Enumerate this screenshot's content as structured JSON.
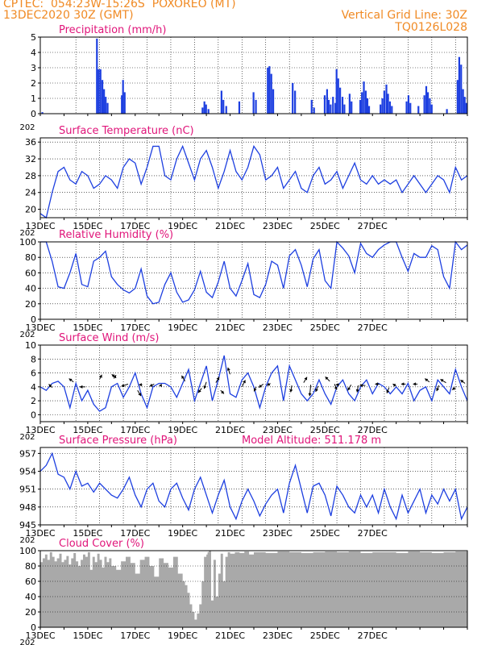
{
  "header": {
    "line1": "CPTEC:  054:23W-15:26S  POXOREO (MT)",
    "line2": "13DEC2020 30Z (GMT)",
    "right1": "Vertical Grid Line: 30Z",
    "right2": "TQ0126L028"
  },
  "colors": {
    "header": "#f08a24",
    "title": "#e0157a",
    "line": "#1d3fe0",
    "bar": "#1d3fe0",
    "cloud": "#a9a9a9",
    "axis": "#000000"
  },
  "x_ticks": [
    "13DEC",
    "15DEC",
    "17DEC",
    "19DEC",
    "21DEC",
    "23DEC",
    "25DEC",
    "27DEC"
  ],
  "year_stub": "202",
  "chart_data": [
    {
      "id": "precip",
      "type": "bar",
      "title": "Precipitation (mm/h)",
      "ylim": [
        0,
        5
      ],
      "yticks": [
        0,
        1,
        2,
        3,
        4,
        5
      ],
      "grid": true,
      "x_unit": "days since 13DEC 00Z",
      "show_xlabels": false,
      "bars": [
        [
          0.05,
          0.1
        ],
        [
          2.35,
          4.9
        ],
        [
          2.42,
          2.9
        ],
        [
          2.5,
          2.9
        ],
        [
          2.58,
          2.2
        ],
        [
          2.65,
          1.6
        ],
        [
          2.72,
          1.1
        ],
        [
          2.8,
          0.7
        ],
        [
          3.4,
          1.2
        ],
        [
          3.45,
          2.2
        ],
        [
          3.52,
          1.4
        ],
        [
          6.8,
          0.4
        ],
        [
          6.88,
          0.8
        ],
        [
          6.95,
          0.6
        ],
        [
          7.05,
          0.3
        ],
        [
          7.6,
          1.5
        ],
        [
          7.68,
          0.9
        ],
        [
          7.8,
          0.5
        ],
        [
          8.35,
          0.8
        ],
        [
          8.95,
          1.4
        ],
        [
          9.05,
          0.9
        ],
        [
          9.55,
          3.0
        ],
        [
          9.62,
          3.1
        ],
        [
          9.7,
          2.6
        ],
        [
          9.78,
          1.6
        ],
        [
          10.6,
          2.0
        ],
        [
          10.7,
          1.5
        ],
        [
          11.4,
          0.9
        ],
        [
          11.5,
          0.4
        ],
        [
          11.95,
          1.2
        ],
        [
          12.05,
          1.6
        ],
        [
          12.12,
          0.9
        ],
        [
          12.2,
          0.6
        ],
        [
          12.3,
          1.1
        ],
        [
          12.4,
          0.7
        ],
        [
          12.45,
          2.9
        ],
        [
          12.52,
          2.3
        ],
        [
          12.6,
          1.7
        ],
        [
          12.7,
          1.1
        ],
        [
          12.78,
          0.6
        ],
        [
          13.0,
          1.3
        ],
        [
          13.08,
          0.8
        ],
        [
          13.45,
          0.9
        ],
        [
          13.52,
          1.4
        ],
        [
          13.6,
          2.1
        ],
        [
          13.68,
          1.5
        ],
        [
          13.75,
          1.0
        ],
        [
          13.82,
          0.5
        ],
        [
          14.3,
          0.6
        ],
        [
          14.38,
          1.0
        ],
        [
          14.46,
          1.5
        ],
        [
          14.55,
          1.9
        ],
        [
          14.62,
          1.3
        ],
        [
          14.7,
          0.8
        ],
        [
          14.78,
          0.5
        ],
        [
          15.4,
          0.8
        ],
        [
          15.48,
          1.2
        ],
        [
          15.56,
          0.7
        ],
        [
          15.9,
          0.5
        ],
        [
          16.15,
          1.2
        ],
        [
          16.23,
          1.8
        ],
        [
          16.3,
          1.4
        ],
        [
          16.38,
          1.0
        ],
        [
          16.46,
          0.6
        ],
        [
          17.1,
          0.3
        ],
        [
          17.55,
          2.2
        ],
        [
          17.62,
          3.7
        ],
        [
          17.7,
          3.2
        ],
        [
          17.78,
          1.6
        ],
        [
          17.85,
          1.1
        ],
        [
          17.92,
          0.7
        ]
      ]
    },
    {
      "id": "temp",
      "type": "line",
      "title": "Surface Temperature (nC)",
      "ylim": [
        18,
        37
      ],
      "yticks": [
        20,
        24,
        28,
        32,
        36
      ],
      "grid": true,
      "x_unit": "days since 13DEC 00Z",
      "show_xlabels": true,
      "x": [
        0,
        0.25,
        0.5,
        0.75,
        1,
        1.25,
        1.5,
        1.75,
        2,
        2.25,
        2.5,
        2.75,
        3,
        3.25,
        3.5,
        3.75,
        4,
        4.25,
        4.5,
        4.75,
        5,
        5.25,
        5.5,
        5.75,
        6,
        6.25,
        6.5,
        6.75,
        7,
        7.25,
        7.5,
        7.75,
        8,
        8.25,
        8.5,
        8.75,
        9,
        9.25,
        9.5,
        9.75,
        10,
        10.25,
        10.5,
        10.75,
        11,
        11.25,
        11.5,
        11.75,
        12,
        12.25,
        12.5,
        12.75,
        13,
        13.25,
        13.5,
        13.75,
        14,
        14.25,
        14.5,
        14.75,
        15,
        15.25,
        15.5,
        15.75,
        16,
        16.25,
        16.5,
        16.75,
        17,
        17.25,
        17.5,
        17.75,
        18
      ],
      "y": [
        19,
        18,
        24,
        29,
        30,
        27,
        26,
        29,
        28,
        25,
        26,
        28,
        27,
        25,
        30,
        32,
        31,
        26,
        30,
        35,
        35,
        28,
        27,
        32,
        35,
        31,
        27,
        32,
        34,
        30,
        25,
        29,
        34,
        29,
        27,
        30,
        35,
        33,
        27,
        28,
        30,
        25,
        27,
        29,
        25,
        24,
        28,
        30,
        26,
        27,
        29,
        25,
        28,
        31,
        27,
        26,
        28,
        26,
        27,
        26,
        27,
        24,
        26,
        28,
        26,
        24,
        26,
        28,
        27,
        24,
        30,
        27,
        28
      ]
    },
    {
      "id": "rh",
      "type": "line",
      "title": "Relative Humidity (%)",
      "ylim": [
        0,
        100
      ],
      "yticks": [
        0,
        20,
        40,
        60,
        80,
        100
      ],
      "grid": true,
      "x_unit": "days since 13DEC 00Z",
      "show_xlabels": true,
      "x": [
        0,
        0.25,
        0.5,
        0.75,
        1,
        1.25,
        1.5,
        1.75,
        2,
        2.25,
        2.5,
        2.75,
        3,
        3.25,
        3.5,
        3.75,
        4,
        4.25,
        4.5,
        4.75,
        5,
        5.25,
        5.5,
        5.75,
        6,
        6.25,
        6.5,
        6.75,
        7,
        7.25,
        7.5,
        7.75,
        8,
        8.25,
        8.5,
        8.75,
        9,
        9.25,
        9.5,
        9.75,
        10,
        10.25,
        10.5,
        10.75,
        11,
        11.25,
        11.5,
        11.75,
        12,
        12.25,
        12.5,
        12.75,
        13,
        13.25,
        13.5,
        13.75,
        14,
        14.25,
        14.5,
        14.75,
        15,
        15.25,
        15.5,
        15.75,
        16,
        16.25,
        16.5,
        16.75,
        17,
        17.25,
        17.5,
        17.75,
        18
      ],
      "y": [
        100,
        100,
        75,
        42,
        40,
        60,
        85,
        45,
        42,
        75,
        80,
        88,
        55,
        45,
        38,
        34,
        40,
        65,
        30,
        20,
        22,
        45,
        60,
        35,
        22,
        25,
        38,
        62,
        35,
        28,
        48,
        75,
        40,
        30,
        50,
        72,
        32,
        28,
        45,
        75,
        70,
        40,
        82,
        90,
        70,
        42,
        78,
        90,
        50,
        40,
        100,
        92,
        82,
        60,
        98,
        85,
        80,
        90,
        96,
        100,
        100,
        80,
        62,
        85,
        80,
        80,
        95,
        90,
        55,
        40,
        100,
        90,
        96
      ]
    },
    {
      "id": "wind",
      "type": "line",
      "title": "Surface Wind (m/s)",
      "ylim": [
        -1,
        10
      ],
      "yticks": [
        0,
        2,
        4,
        6,
        8,
        10
      ],
      "grid": true,
      "x_unit": "days since 13DEC 00Z",
      "show_xlabels": true,
      "x": [
        0,
        0.25,
        0.5,
        0.75,
        1,
        1.25,
        1.5,
        1.75,
        2,
        2.25,
        2.5,
        2.75,
        3,
        3.25,
        3.5,
        3.75,
        4,
        4.25,
        4.5,
        4.75,
        5,
        5.25,
        5.5,
        5.75,
        6,
        6.25,
        6.5,
        6.75,
        7,
        7.25,
        7.5,
        7.75,
        8,
        8.25,
        8.5,
        8.75,
        9,
        9.25,
        9.5,
        9.75,
        10,
        10.25,
        10.5,
        10.75,
        11,
        11.25,
        11.5,
        11.75,
        12,
        12.25,
        12.5,
        12.75,
        13,
        13.25,
        13.5,
        13.75,
        14,
        14.25,
        14.5,
        14.75,
        15,
        15.25,
        15.5,
        15.75,
        16,
        16.25,
        16.5,
        16.75,
        17,
        17.25,
        17.5,
        17.75,
        18
      ],
      "y": [
        4,
        3.5,
        4.5,
        4.8,
        4,
        1,
        4.5,
        2,
        3.5,
        1.5,
        0.5,
        1,
        4,
        4.5,
        2.5,
        4,
        6,
        3,
        1,
        4,
        4.5,
        4.5,
        4,
        2.5,
        4.5,
        6.5,
        2,
        4.5,
        7,
        2,
        5,
        8.5,
        3,
        2.5,
        5,
        6,
        4,
        1,
        4,
        6,
        7,
        2,
        7,
        5,
        3,
        2,
        3,
        5,
        3,
        1.5,
        4,
        5,
        3,
        2,
        4,
        5,
        3,
        4.5,
        4,
        3,
        4,
        3,
        4.5,
        2,
        3.5,
        4,
        2,
        5,
        4,
        3,
        6.5,
        4,
        2
      ],
      "vectors": [
        [
          0.5,
          3.9,
          -0.3,
          0.3
        ],
        [
          1.4,
          4.7,
          -0.4,
          0.3
        ],
        [
          1.9,
          4.0,
          -0.5,
          0
        ],
        [
          2.5,
          5.1,
          0.2,
          0.4
        ],
        [
          3.1,
          5.2,
          0.2,
          0.3
        ],
        [
          3.2,
          5.3,
          -0.4,
          0.3
        ],
        [
          3.7,
          4.4,
          -0.6,
          -0.2
        ],
        [
          4.1,
          3.5,
          0.3,
          -0.5
        ],
        [
          4.3,
          4.3,
          -0.3,
          0
        ],
        [
          4.8,
          4.4,
          -0.4,
          -0.2
        ],
        [
          5.1,
          4.2,
          -0.2,
          0
        ],
        [
          6.1,
          4.8,
          -0.3,
          0.5
        ],
        [
          6.8,
          3.8,
          -0.3,
          -0.4
        ],
        [
          7.0,
          4.7,
          -0.2,
          -0.6
        ],
        [
          7.4,
          4.6,
          0.3,
          0.5
        ],
        [
          7.6,
          3.5,
          0.3,
          -0.3
        ],
        [
          8.0,
          5.8,
          -0.2,
          0.6
        ],
        [
          8.5,
          4.0,
          0.3,
          0.6
        ],
        [
          9.1,
          4.0,
          -0.2,
          -0.4
        ],
        [
          9.4,
          4.4,
          -0.4,
          -0.3
        ],
        [
          9.7,
          4.5,
          -0.3,
          -0.2
        ],
        [
          10.6,
          4.2,
          -0.1,
          -0.6
        ],
        [
          11.1,
          4.6,
          0.3,
          0.5
        ],
        [
          11.4,
          4.3,
          -0.1,
          -1.0
        ],
        [
          11.7,
          4.1,
          -0.2,
          -0.5
        ],
        [
          12.2,
          4.8,
          -0.4,
          0.4
        ],
        [
          12.4,
          4.4,
          0.2,
          -0.5
        ],
        [
          12.6,
          4.3,
          -0.3,
          0
        ],
        [
          13.1,
          4.3,
          -0.3,
          -0.5
        ],
        [
          13.4,
          4.2,
          -0.1,
          -0.6
        ],
        [
          13.7,
          4.2,
          -0.5,
          0
        ],
        [
          14.3,
          4.4,
          -0.4,
          0
        ],
        [
          14.7,
          3.9,
          -0.2,
          -0.5
        ],
        [
          15.0,
          4.1,
          -0.3,
          0.2
        ],
        [
          15.4,
          4.4,
          -0.4,
          0
        ],
        [
          15.9,
          4.4,
          -0.4,
          0
        ],
        [
          16.4,
          4.7,
          -0.4,
          0.3
        ],
        [
          16.8,
          4.2,
          -0.2,
          -0.5
        ],
        [
          17.1,
          4.6,
          -0.5,
          0.3
        ],
        [
          17.5,
          3.9,
          -0.3,
          -0.2
        ],
        [
          17.9,
          4.5,
          -0.4,
          0.3
        ]
      ]
    },
    {
      "id": "pres",
      "type": "line",
      "title": "Surface Pressure (hPa)",
      "subtitle": "Model Altitude: 511.178 m",
      "ylim": [
        945,
        958
      ],
      "yticks": [
        945,
        948,
        951,
        954,
        957
      ],
      "grid": true,
      "x_unit": "days since 13DEC 00Z",
      "show_xlabels": true,
      "x": [
        0,
        0.25,
        0.5,
        0.75,
        1,
        1.25,
        1.5,
        1.75,
        2,
        2.25,
        2.5,
        2.75,
        3,
        3.25,
        3.5,
        3.75,
        4,
        4.25,
        4.5,
        4.75,
        5,
        5.25,
        5.5,
        5.75,
        6,
        6.25,
        6.5,
        6.75,
        7,
        7.25,
        7.5,
        7.75,
        8,
        8.25,
        8.5,
        8.75,
        9,
        9.25,
        9.5,
        9.75,
        10,
        10.25,
        10.5,
        10.75,
        11,
        11.25,
        11.5,
        11.75,
        12,
        12.25,
        12.5,
        12.75,
        13,
        13.25,
        13.5,
        13.75,
        14,
        14.25,
        14.5,
        14.75,
        15,
        15.25,
        15.5,
        15.75,
        16,
        16.25,
        16.5,
        16.75,
        17,
        17.25,
        17.5,
        17.75,
        18
      ],
      "y": [
        954,
        955,
        957,
        953.5,
        953,
        951,
        954,
        951.5,
        952,
        950.5,
        952,
        951,
        950,
        949.5,
        951,
        953,
        950,
        948,
        951,
        952,
        949,
        948,
        951,
        952,
        949.5,
        947.5,
        951,
        953,
        950,
        947,
        950,
        952.5,
        948,
        946,
        949,
        951,
        949,
        946.5,
        948.5,
        950,
        951,
        947,
        952,
        955,
        951,
        947,
        951.5,
        952,
        950,
        946.5,
        951.5,
        950,
        948,
        947,
        950,
        948,
        950,
        947,
        951,
        948,
        946,
        950,
        947,
        949,
        951,
        947,
        950,
        948.5,
        951,
        949,
        951,
        946,
        948
      ]
    },
    {
      "id": "cloud",
      "type": "area",
      "title": "Cloud Cover (%)",
      "ylim": [
        0,
        100
      ],
      "yticks": [
        0,
        20,
        40,
        60,
        80,
        100
      ],
      "grid": true,
      "x_unit": "days since 13DEC 00Z",
      "show_xlabels": true,
      "x": [
        0,
        0.1,
        0.2,
        0.3,
        0.4,
        0.5,
        0.6,
        0.7,
        0.8,
        0.9,
        1,
        1.1,
        1.2,
        1.3,
        1.4,
        1.5,
        1.6,
        1.7,
        1.8,
        1.9,
        2,
        2.1,
        2.2,
        2.3,
        2.4,
        2.5,
        2.6,
        2.7,
        2.8,
        2.9,
        3,
        3.2,
        3.4,
        3.6,
        3.8,
        4,
        4.2,
        4.4,
        4.6,
        4.8,
        5,
        5.2,
        5.4,
        5.6,
        5.8,
        6,
        6.1,
        6.2,
        6.3,
        6.4,
        6.5,
        6.6,
        6.7,
        6.8,
        6.9,
        7,
        7.05,
        7.1,
        7.2,
        7.3,
        7.4,
        7.5,
        7.6,
        7.7,
        7.8,
        7.9,
        8,
        8.2,
        8.4,
        8.6,
        8.8,
        9,
        9.5,
        10,
        10.5,
        11,
        11.5,
        12,
        12.5,
        13,
        13.5,
        14,
        14.5,
        15,
        15.5,
        16,
        16.5,
        17,
        17.5,
        18
      ],
      "y": [
        85,
        90,
        95,
        88,
        98,
        92,
        86,
        90,
        96,
        85,
        88,
        93,
        82,
        90,
        97,
        86,
        80,
        88,
        95,
        92,
        98,
        75,
        92,
        85,
        96,
        88,
        78,
        92,
        85,
        90,
        80,
        75,
        86,
        92,
        84,
        70,
        88,
        92,
        80,
        66,
        90,
        84,
        78,
        92,
        70,
        60,
        55,
        45,
        30,
        20,
        10,
        18,
        30,
        60,
        92,
        95,
        98,
        100,
        35,
        88,
        40,
        70,
        96,
        60,
        92,
        98,
        96,
        98,
        97,
        99,
        95,
        98,
        97,
        99,
        98,
        97,
        98,
        99,
        98,
        99,
        97,
        98,
        98,
        97,
        99,
        98,
        97,
        98,
        99,
        98
      ]
    }
  ]
}
